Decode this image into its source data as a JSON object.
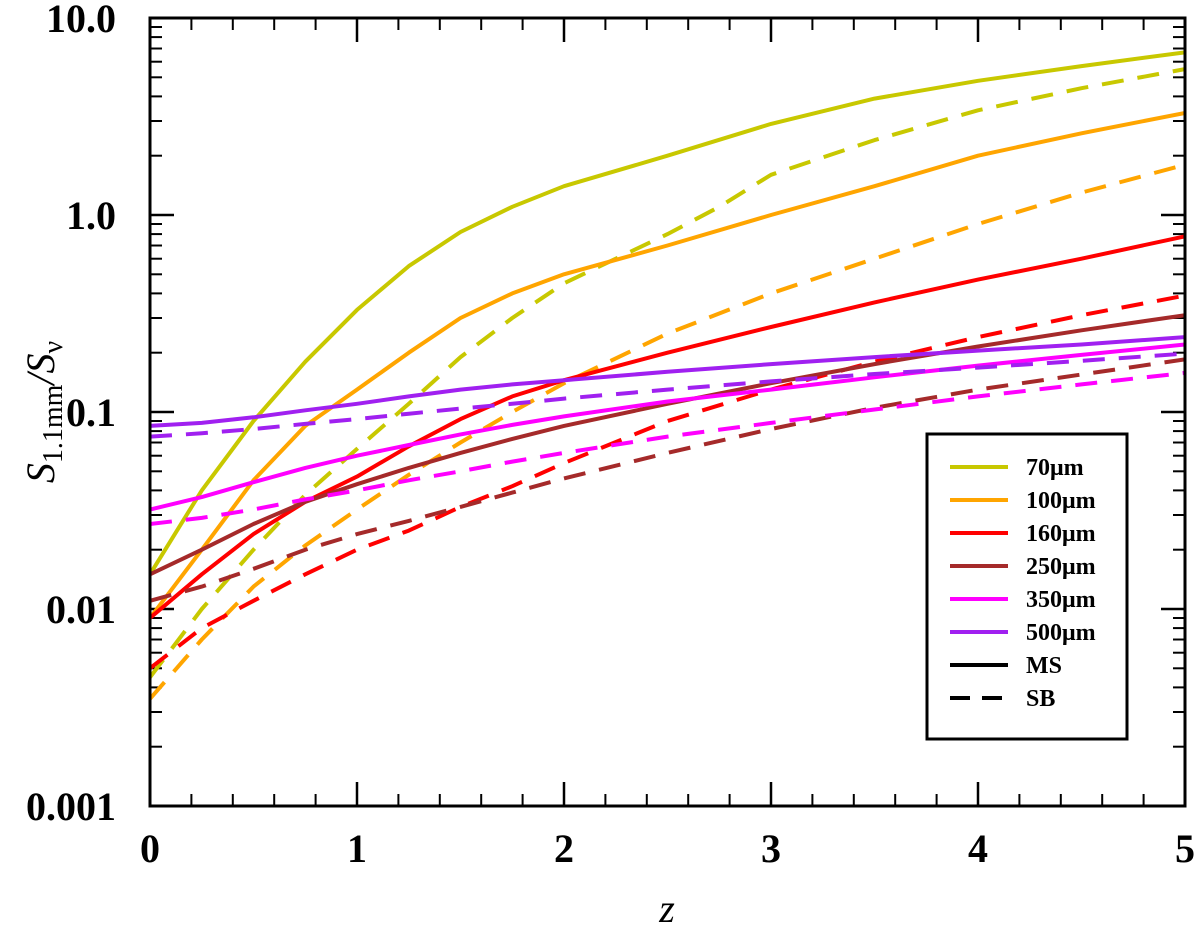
{
  "chart_data": {
    "type": "line",
    "title": "",
    "xlabel": "z",
    "ylabel": {
      "base": "S",
      "num_sub": "1.1mm",
      "sep": "/S",
      "den_sub": "ν"
    },
    "xlim": [
      0,
      5
    ],
    "ylim": [
      0.001,
      10
    ],
    "yscale": "log",
    "x_ticks": [
      0,
      1,
      2,
      3,
      4,
      5
    ],
    "x_tick_labels": [
      "0",
      "1",
      "2",
      "3",
      "4",
      "5"
    ],
    "y_ticks": [
      0.001,
      0.01,
      0.1,
      1,
      10
    ],
    "y_tick_labels": [
      "0.001",
      "0.01",
      "0.1",
      "1.0",
      "10.0"
    ],
    "grid": false,
    "legend_position": "lower-right",
    "legend": [
      {
        "label": "70μm",
        "color": "#c8c800",
        "style": "solid"
      },
      {
        "label": "100μm",
        "color": "#ffa500",
        "style": "solid"
      },
      {
        "label": "160μm",
        "color": "#ff0000",
        "style": "solid"
      },
      {
        "label": "250μm",
        "color": "#a52a2a",
        "style": "solid"
      },
      {
        "label": "350μm",
        "color": "#ff00ff",
        "style": "solid"
      },
      {
        "label": "500μm",
        "color": "#a020f0",
        "style": "solid"
      },
      {
        "label": "MS",
        "color": "#000000",
        "style": "solid"
      },
      {
        "label": "SB",
        "color": "#000000",
        "style": "dashed"
      }
    ],
    "series": [
      {
        "band": "70μm",
        "type": "MS",
        "color": "#c8c800",
        "style": "solid",
        "points": [
          [
            0,
            0.015
          ],
          [
            0.25,
            0.04
          ],
          [
            0.5,
            0.09
          ],
          [
            0.75,
            0.18
          ],
          [
            1,
            0.33
          ],
          [
            1.25,
            0.55
          ],
          [
            1.5,
            0.82
          ],
          [
            1.75,
            1.1
          ],
          [
            2,
            1.4
          ],
          [
            2.5,
            2.0
          ],
          [
            3,
            2.9
          ],
          [
            3.5,
            3.9
          ],
          [
            4,
            4.8
          ],
          [
            4.5,
            5.7
          ],
          [
            5,
            6.7
          ]
        ]
      },
      {
        "band": "70μm",
        "type": "SB",
        "color": "#c8c800",
        "style": "dashed",
        "points": [
          [
            0,
            0.0045
          ],
          [
            0.25,
            0.01
          ],
          [
            0.5,
            0.02
          ],
          [
            0.75,
            0.038
          ],
          [
            1,
            0.065
          ],
          [
            1.25,
            0.11
          ],
          [
            1.5,
            0.19
          ],
          [
            1.75,
            0.3
          ],
          [
            2,
            0.45
          ],
          [
            2.25,
            0.6
          ],
          [
            2.5,
            0.8
          ],
          [
            2.75,
            1.1
          ],
          [
            3,
            1.6
          ],
          [
            3.5,
            2.4
          ],
          [
            4,
            3.4
          ],
          [
            4.5,
            4.4
          ],
          [
            5,
            5.5
          ]
        ]
      },
      {
        "band": "100μm",
        "type": "MS",
        "color": "#ffa500",
        "style": "solid",
        "points": [
          [
            0,
            0.009
          ],
          [
            0.25,
            0.02
          ],
          [
            0.5,
            0.045
          ],
          [
            0.75,
            0.085
          ],
          [
            1,
            0.13
          ],
          [
            1.25,
            0.2
          ],
          [
            1.5,
            0.3
          ],
          [
            1.75,
            0.4
          ],
          [
            2,
            0.5
          ],
          [
            2.5,
            0.7
          ],
          [
            3,
            1.0
          ],
          [
            3.5,
            1.4
          ],
          [
            4,
            2.0
          ],
          [
            4.5,
            2.6
          ],
          [
            5,
            3.3
          ]
        ]
      },
      {
        "band": "100μm",
        "type": "SB",
        "color": "#ffa500",
        "style": "dashed",
        "points": [
          [
            0,
            0.0035
          ],
          [
            0.25,
            0.007
          ],
          [
            0.5,
            0.013
          ],
          [
            0.75,
            0.021
          ],
          [
            1,
            0.032
          ],
          [
            1.25,
            0.048
          ],
          [
            1.5,
            0.07
          ],
          [
            1.75,
            0.1
          ],
          [
            2,
            0.14
          ],
          [
            2.5,
            0.25
          ],
          [
            3,
            0.4
          ],
          [
            3.5,
            0.6
          ],
          [
            4,
            0.9
          ],
          [
            4.5,
            1.3
          ],
          [
            5,
            1.8
          ]
        ]
      },
      {
        "band": "160μm",
        "type": "MS",
        "color": "#ff0000",
        "style": "solid",
        "points": [
          [
            0,
            0.009
          ],
          [
            0.25,
            0.015
          ],
          [
            0.5,
            0.024
          ],
          [
            0.75,
            0.035
          ],
          [
            1,
            0.047
          ],
          [
            1.25,
            0.067
          ],
          [
            1.5,
            0.092
          ],
          [
            1.75,
            0.12
          ],
          [
            2,
            0.145
          ],
          [
            2.5,
            0.2
          ],
          [
            3,
            0.27
          ],
          [
            3.5,
            0.36
          ],
          [
            4,
            0.47
          ],
          [
            4.5,
            0.6
          ],
          [
            5,
            0.78
          ]
        ]
      },
      {
        "band": "160μm",
        "type": "SB",
        "color": "#ff0000",
        "style": "dashed",
        "points": [
          [
            0,
            0.005
          ],
          [
            0.25,
            0.008
          ],
          [
            0.5,
            0.011
          ],
          [
            0.75,
            0.015
          ],
          [
            1,
            0.02
          ],
          [
            1.25,
            0.025
          ],
          [
            1.5,
            0.033
          ],
          [
            1.75,
            0.042
          ],
          [
            2,
            0.055
          ],
          [
            2.5,
            0.09
          ],
          [
            3,
            0.13
          ],
          [
            3.5,
            0.18
          ],
          [
            4,
            0.24
          ],
          [
            4.5,
            0.31
          ],
          [
            5,
            0.39
          ]
        ]
      },
      {
        "band": "250μm",
        "type": "MS",
        "color": "#a52a2a",
        "style": "solid",
        "points": [
          [
            0,
            0.015
          ],
          [
            0.25,
            0.02
          ],
          [
            0.5,
            0.027
          ],
          [
            0.75,
            0.035
          ],
          [
            1,
            0.043
          ],
          [
            1.25,
            0.052
          ],
          [
            1.5,
            0.062
          ],
          [
            1.75,
            0.073
          ],
          [
            2,
            0.085
          ],
          [
            2.5,
            0.11
          ],
          [
            3,
            0.14
          ],
          [
            3.5,
            0.175
          ],
          [
            4,
            0.215
          ],
          [
            4.5,
            0.26
          ],
          [
            5,
            0.31
          ]
        ]
      },
      {
        "band": "250μm",
        "type": "SB",
        "color": "#a52a2a",
        "style": "dashed",
        "points": [
          [
            0,
            0.011
          ],
          [
            0.25,
            0.013
          ],
          [
            0.5,
            0.016
          ],
          [
            0.75,
            0.02
          ],
          [
            1,
            0.024
          ],
          [
            1.25,
            0.028
          ],
          [
            1.5,
            0.033
          ],
          [
            1.75,
            0.039
          ],
          [
            2,
            0.046
          ],
          [
            2.5,
            0.062
          ],
          [
            3,
            0.082
          ],
          [
            3.5,
            0.105
          ],
          [
            4,
            0.13
          ],
          [
            4.5,
            0.155
          ],
          [
            5,
            0.185
          ]
        ]
      },
      {
        "band": "350μm",
        "type": "MS",
        "color": "#ff00ff",
        "style": "solid",
        "points": [
          [
            0,
            0.032
          ],
          [
            0.25,
            0.037
          ],
          [
            0.5,
            0.044
          ],
          [
            0.75,
            0.052
          ],
          [
            1,
            0.06
          ],
          [
            1.25,
            0.068
          ],
          [
            1.5,
            0.077
          ],
          [
            1.75,
            0.086
          ],
          [
            2,
            0.095
          ],
          [
            2.5,
            0.113
          ],
          [
            3,
            0.13
          ],
          [
            3.5,
            0.15
          ],
          [
            4,
            0.172
          ],
          [
            4.5,
            0.195
          ],
          [
            5,
            0.22
          ]
        ]
      },
      {
        "band": "350μm",
        "type": "SB",
        "color": "#ff00ff",
        "style": "dashed",
        "points": [
          [
            0,
            0.027
          ],
          [
            0.25,
            0.029
          ],
          [
            0.5,
            0.032
          ],
          [
            0.75,
            0.036
          ],
          [
            1,
            0.04
          ],
          [
            1.25,
            0.045
          ],
          [
            1.5,
            0.05
          ],
          [
            1.75,
            0.056
          ],
          [
            2,
            0.062
          ],
          [
            2.5,
            0.075
          ],
          [
            3,
            0.088
          ],
          [
            3.5,
            0.103
          ],
          [
            4,
            0.12
          ],
          [
            4.5,
            0.138
          ],
          [
            5,
            0.158
          ]
        ]
      },
      {
        "band": "500μm",
        "type": "MS",
        "color": "#a020f0",
        "style": "solid",
        "points": [
          [
            0,
            0.085
          ],
          [
            0.25,
            0.088
          ],
          [
            0.5,
            0.094
          ],
          [
            0.75,
            0.102
          ],
          [
            1,
            0.11
          ],
          [
            1.25,
            0.12
          ],
          [
            1.5,
            0.13
          ],
          [
            1.75,
            0.138
          ],
          [
            2,
            0.145
          ],
          [
            2.5,
            0.16
          ],
          [
            3,
            0.175
          ],
          [
            3.5,
            0.19
          ],
          [
            4,
            0.205
          ],
          [
            4.5,
            0.22
          ],
          [
            5,
            0.24
          ]
        ]
      },
      {
        "band": "500μm",
        "type": "SB",
        "color": "#a020f0",
        "style": "dashed",
        "points": [
          [
            0,
            0.075
          ],
          [
            0.25,
            0.078
          ],
          [
            0.5,
            0.082
          ],
          [
            0.75,
            0.087
          ],
          [
            1,
            0.092
          ],
          [
            1.25,
            0.098
          ],
          [
            1.5,
            0.104
          ],
          [
            1.75,
            0.11
          ],
          [
            2,
            0.117
          ],
          [
            2.5,
            0.13
          ],
          [
            3,
            0.143
          ],
          [
            3.5,
            0.156
          ],
          [
            4,
            0.168
          ],
          [
            4.5,
            0.182
          ],
          [
            5,
            0.198
          ]
        ]
      }
    ]
  }
}
